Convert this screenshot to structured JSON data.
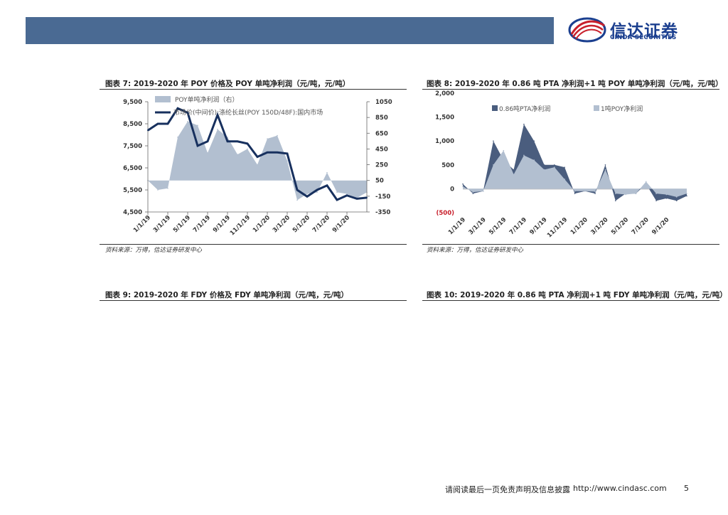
{
  "brand": {
    "name_cn": "信达证券",
    "name_en": "CINDA SECURITIES",
    "colors": {
      "band": "#4a6a93",
      "logo": "#1b3f8f",
      "accent": "#c8202c"
    }
  },
  "figures": [
    {
      "title": "图表 7:  2019-2020 年 POY 价格及 POY 单吨净利润（元/吨，元/吨）",
      "source": "资料来源：万得，信达证券研发中心"
    },
    {
      "title": "图表 8:  2019-2020 年 0.86 吨 PTA 净利润+1 吨 POY 单吨净利润（元/吨，元/吨）",
      "source": "资料来源：万得，信达证券研发中心"
    },
    {
      "title": "图表 9:  2019-2020 年 FDY 价格及 FDY 单吨净利润（元/吨，元/吨）"
    },
    {
      "title": "图表 10:  2019-2020 年 0.86 吨 PTA 净利润+1 吨 FDY 单吨净利润（元/吨，元/吨）"
    }
  ],
  "footer": {
    "disclaimer": "请阅读最后一页免责声明及信息披露",
    "url": "http://www.cindasc.com",
    "page": "5"
  },
  "chart_data": [
    {
      "type": "area+line",
      "title": "",
      "series": [
        {
          "name": "POY单吨净利润（右）",
          "axis": "right",
          "color": "#b2bfd0",
          "x": [
            "1/1/19",
            "2/1/19",
            "3/1/19",
            "4/1/19",
            "5/1/19",
            "6/1/19",
            "7/1/19",
            "8/1/19",
            "9/1/19",
            "10/1/19",
            "11/1/19",
            "12/1/19",
            "1/1/20",
            "2/1/20",
            "3/1/20",
            "4/1/20",
            "5/1/20",
            "6/1/20",
            "7/1/20",
            "8/1/20",
            "9/1/20",
            "10/1/20",
            "11/1/20"
          ],
          "values": [
            50,
            -70,
            -50,
            600,
            800,
            750,
            400,
            700,
            600,
            380,
            450,
            250,
            580,
            620,
            300,
            -200,
            -120,
            -100,
            150,
            -100,
            -120,
            -170,
            -100
          ]
        },
        {
          "name": "市场价(中间价):涤纶长丝(POY 150D/48F):国内市场",
          "axis": "left",
          "color": "#17305e",
          "x": [
            "1/1/19",
            "2/1/19",
            "3/1/19",
            "4/1/19",
            "5/1/19",
            "6/1/19",
            "7/1/19",
            "8/1/19",
            "9/1/19",
            "10/1/19",
            "11/1/19",
            "12/1/19",
            "1/1/20",
            "2/1/20",
            "3/1/20",
            "4/1/20",
            "5/1/20",
            "6/1/20",
            "7/1/20",
            "8/1/20",
            "9/1/20",
            "10/1/20",
            "11/1/20"
          ],
          "values": [
            8200,
            8500,
            8500,
            9200,
            9000,
            7500,
            7700,
            8900,
            7700,
            7700,
            7600,
            7000,
            7200,
            7200,
            7150,
            5500,
            5200,
            5500,
            5700,
            5050,
            5250,
            5100,
            5150
          ]
        }
      ],
      "x_ticks": [
        "1/1/19",
        "3/1/19",
        "5/1/19",
        "7/1/19",
        "9/1/19",
        "11/1/19",
        "1/1/20",
        "3/1/20",
        "5/1/20",
        "7/1/20",
        "9/1/20"
      ],
      "y_left": {
        "ticks": [
          "4,500",
          "5,500",
          "6,500",
          "7,500",
          "8,500",
          "9,500"
        ],
        "range": [
          4500,
          9500
        ]
      },
      "y_right": {
        "ticks": [
          "-350",
          "-150",
          "50",
          "250",
          "450",
          "650",
          "850",
          "1050"
        ],
        "range": [
          -350,
          1050
        ]
      },
      "legend_placement": "top-left"
    },
    {
      "type": "area",
      "title": "",
      "series": [
        {
          "name": "0.86吨PTA净利润",
          "color": "#4a5d7e",
          "x": [
            "1/1/19",
            "2/1/19",
            "3/1/19",
            "4/1/19",
            "5/1/19",
            "6/1/19",
            "7/1/19",
            "8/1/19",
            "9/1/19",
            "10/1/19",
            "11/1/19",
            "12/1/19",
            "1/1/20",
            "2/1/20",
            "3/1/20",
            "4/1/20",
            "5/1/20",
            "6/1/20",
            "7/1/20",
            "8/1/20",
            "9/1/20",
            "10/1/20",
            "11/1/20"
          ],
          "values": [
            100,
            -100,
            -50,
            1000,
            600,
            400,
            1350,
            1000,
            500,
            500,
            450,
            -100,
            -50,
            -100,
            500,
            -250,
            -100,
            -100,
            100,
            -250,
            -200,
            -250,
            -150
          ]
        },
        {
          "name": "1吨POY净利润",
          "color": "#b2bfd0",
          "x": [
            "1/1/19",
            "2/1/19",
            "3/1/19",
            "4/1/19",
            "5/1/19",
            "6/1/19",
            "7/1/19",
            "8/1/19",
            "9/1/19",
            "10/1/19",
            "11/1/19",
            "12/1/19",
            "1/1/20",
            "2/1/20",
            "3/1/20",
            "4/1/20",
            "5/1/20",
            "6/1/20",
            "7/1/20",
            "8/1/20",
            "9/1/20",
            "10/1/20",
            "11/1/20"
          ],
          "values": [
            50,
            -70,
            -50,
            500,
            800,
            300,
            700,
            600,
            400,
            450,
            200,
            -50,
            -50,
            -60,
            400,
            -100,
            -120,
            -100,
            150,
            -100,
            -120,
            -170,
            -100
          ]
        }
      ],
      "x_ticks": [
        "1/1/19",
        "3/1/19",
        "5/1/19",
        "7/1/19",
        "9/1/19",
        "11/1/19",
        "1/1/20",
        "3/1/20",
        "5/1/20",
        "7/1/20",
        "9/1/20"
      ],
      "y": {
        "ticks": [
          "(500)",
          "0",
          "500",
          "1,000",
          "1,500",
          "2,000"
        ],
        "range": [
          -500,
          2000
        ]
      },
      "legend_placement": "top"
    }
  ]
}
